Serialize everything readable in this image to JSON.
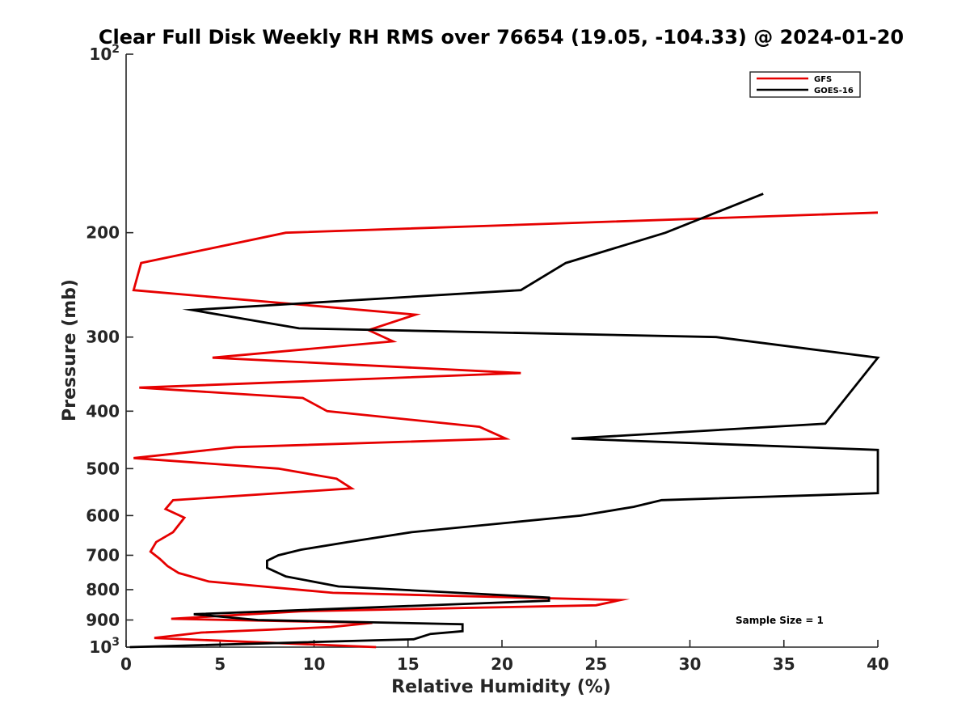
{
  "chart_data": {
    "type": "line",
    "title": "Clear Full Disk Weekly RH RMS over 76654 (19.05, -104.33) @ 2024-01-20",
    "xlabel": "Relative Humidity (%)",
    "ylabel": "Pressure (mb)",
    "xlim": [
      0,
      40
    ],
    "ylim": [
      100,
      1000
    ],
    "yscale": "log",
    "y_reversed": true,
    "x_ticks": [
      0,
      5,
      10,
      15,
      20,
      25,
      30,
      35,
      40
    ],
    "x_tick_labels": [
      "0",
      "5",
      "10",
      "15",
      "20",
      "25",
      "30",
      "35",
      "40"
    ],
    "y_ticks": [
      100,
      200,
      300,
      400,
      500,
      600,
      700,
      800,
      900,
      1000
    ],
    "y_tick_labels": [
      {
        "base": "10",
        "exp": "2"
      },
      {
        "text": "200"
      },
      {
        "text": "300"
      },
      {
        "text": "400"
      },
      {
        "text": "500"
      },
      {
        "text": "600"
      },
      {
        "text": "700"
      },
      {
        "text": "800"
      },
      {
        "text": "900"
      },
      {
        "base": "10",
        "exp": "3"
      }
    ],
    "legend_position": "top-right",
    "annotation": "Sample Size = 1",
    "series": [
      {
        "name": "GFS",
        "color": "#e60000",
        "points": [
          [
            40.0,
            185
          ],
          [
            8.5,
            200
          ],
          [
            0.8,
            225
          ],
          [
            0.4,
            250
          ],
          [
            15.4,
            275
          ],
          [
            12.9,
            292
          ],
          [
            14.2,
            305
          ],
          [
            4.6,
            325
          ],
          [
            21.0,
            345
          ],
          [
            0.7,
            365
          ],
          [
            9.4,
            380
          ],
          [
            10.7,
            400
          ],
          [
            18.8,
            425
          ],
          [
            20.2,
            445
          ],
          [
            5.8,
            460
          ],
          [
            0.4,
            480
          ],
          [
            8.1,
            500
          ],
          [
            11.2,
            520
          ],
          [
            12.0,
            540
          ],
          [
            2.5,
            565
          ],
          [
            2.1,
            585
          ],
          [
            3.1,
            605
          ],
          [
            2.5,
            640
          ],
          [
            1.6,
            665
          ],
          [
            1.3,
            690
          ],
          [
            1.8,
            710
          ],
          [
            2.2,
            730
          ],
          [
            2.8,
            750
          ],
          [
            4.4,
            775
          ],
          [
            11.0,
            810
          ],
          [
            26.3,
            833
          ],
          [
            25.0,
            850
          ],
          [
            9.3,
            870
          ],
          [
            2.4,
            896
          ],
          [
            13.1,
            910
          ],
          [
            10.9,
            925
          ],
          [
            4.0,
            945
          ],
          [
            1.5,
            965
          ],
          [
            13.3,
            1000
          ]
        ]
      },
      {
        "name": "GOES-16",
        "color": "#000000",
        "points": [
          [
            33.9,
            172
          ],
          [
            28.7,
            200
          ],
          [
            23.4,
            225
          ],
          [
            21.0,
            250
          ],
          [
            3.5,
            270
          ],
          [
            9.2,
            290
          ],
          [
            31.4,
            300
          ],
          [
            40.0,
            325
          ],
          [
            37.2,
            420
          ],
          [
            23.7,
            445
          ],
          [
            40.0,
            465
          ],
          [
            40.0,
            550
          ],
          [
            28.5,
            565
          ],
          [
            27.0,
            580
          ],
          [
            24.2,
            600
          ],
          [
            15.2,
            640
          ],
          [
            11.8,
            665
          ],
          [
            9.3,
            685
          ],
          [
            8.1,
            700
          ],
          [
            7.5,
            715
          ],
          [
            7.5,
            735
          ],
          [
            8.5,
            760
          ],
          [
            11.3,
            790
          ],
          [
            22.5,
            825
          ],
          [
            22.5,
            835
          ],
          [
            3.6,
            880
          ],
          [
            7.0,
            900
          ],
          [
            17.9,
            915
          ],
          [
            17.9,
            940
          ],
          [
            16.2,
            950
          ],
          [
            15.3,
            970
          ],
          [
            0.2,
            1000
          ]
        ]
      }
    ]
  }
}
